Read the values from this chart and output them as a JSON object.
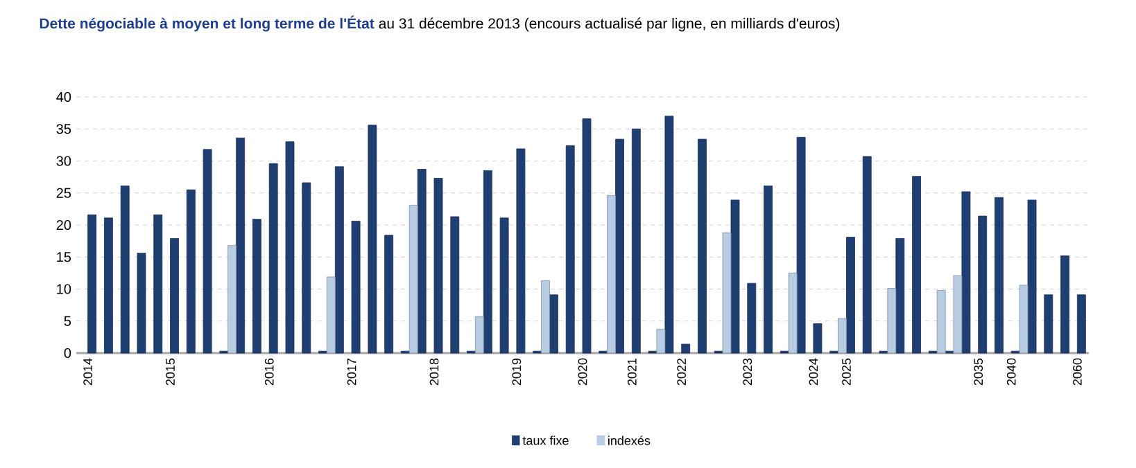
{
  "chart_data": {
    "type": "bar",
    "title": "Dette négociable à moyen et long terme de l'État",
    "subtitle": "au 31 décembre 2013 (encours actualisé par ligne, en milliards d'euros)",
    "categories": [
      "2014",
      null,
      null,
      null,
      null,
      "2015",
      null,
      null,
      null,
      null,
      null,
      "2016",
      null,
      null,
      null,
      null,
      "2017",
      null,
      null,
      null,
      null,
      "2018",
      null,
      null,
      null,
      null,
      "2019",
      null,
      null,
      null,
      "2020",
      null,
      null,
      "2021",
      null,
      null,
      "2022",
      null,
      null,
      null,
      "2023",
      null,
      null,
      null,
      "2024",
      null,
      "2025",
      null,
      null,
      null,
      null,
      null,
      null,
      null,
      "2035",
      null,
      "2040",
      null,
      null,
      null,
      "2060"
    ],
    "series": [
      {
        "name": "taux fixe",
        "color": "#1f3f73",
        "values": [
          21.6,
          21.1,
          26.1,
          15.6,
          21.6,
          17.9,
          25.5,
          31.8,
          0.3,
          33.6,
          20.9,
          29.6,
          33.0,
          26.6,
          0.3,
          29.1,
          20.6,
          35.6,
          18.4,
          0.3,
          28.7,
          27.3,
          21.3,
          0.3,
          28.5,
          21.1,
          31.9,
          0.3,
          9.1,
          32.4,
          36.6,
          0.3,
          33.4,
          35.0,
          0.3,
          37.0,
          1.4,
          33.4,
          0.3,
          23.9,
          10.9,
          26.1,
          0.3,
          33.7,
          4.6,
          0.3,
          18.1,
          30.7,
          0.3,
          17.9,
          27.6,
          0.3,
          0.3,
          25.2,
          21.4,
          24.3,
          0.3,
          23.9,
          9.1,
          15.2,
          9.1
        ]
      },
      {
        "name": "indexés",
        "color": "#b8cce4",
        "values": [
          null,
          null,
          null,
          null,
          null,
          null,
          null,
          null,
          null,
          16.8,
          null,
          null,
          null,
          null,
          null,
          11.9,
          null,
          null,
          null,
          null,
          23.1,
          null,
          null,
          null,
          5.7,
          null,
          null,
          null,
          11.3,
          null,
          null,
          null,
          24.6,
          null,
          null,
          3.7,
          null,
          null,
          null,
          18.8,
          null,
          null,
          null,
          12.5,
          null,
          null,
          5.4,
          null,
          null,
          10.1,
          null,
          null,
          9.8,
          12.1,
          null,
          null,
          null,
          10.6,
          null,
          null,
          null
        ]
      }
    ],
    "ylim": [
      0,
      40
    ],
    "yticks": [
      0,
      5,
      10,
      15,
      20,
      25,
      30,
      35,
      40
    ],
    "grid": "y",
    "legend": "bottom"
  }
}
